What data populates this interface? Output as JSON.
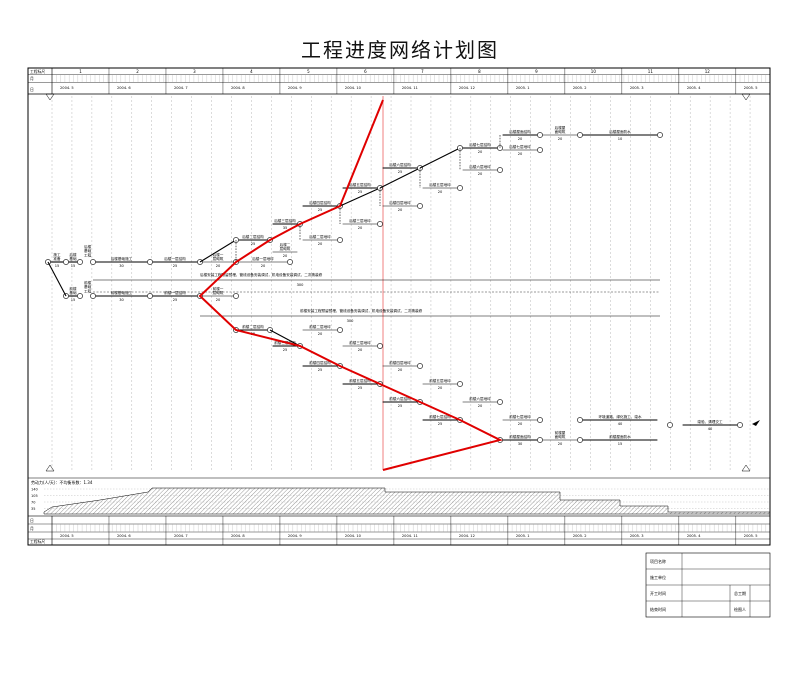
{
  "title": "工程进度网络计划图",
  "header": {
    "row_labels": [
      "工程标尺",
      "月",
      "日"
    ],
    "month_numbers": [
      "1",
      "2",
      "3",
      "4",
      "5",
      "6",
      "7",
      "8",
      "9",
      "10",
      "11",
      "12"
    ],
    "months": [
      "2004. 5",
      "2004. 6",
      "2004. 7",
      "2004. 8",
      "2004. 9",
      "2004. 10",
      "2004. 11",
      "2004. 12",
      "2005. 1",
      "2005. 2",
      "2005. 3",
      "2005. 4",
      "2005. 5"
    ],
    "bottom_row_labels": [
      "日",
      "月",
      "工程标尺"
    ]
  },
  "tasks": [
    {
      "id": "t1",
      "label": "施工\n准备",
      "dur": "15"
    },
    {
      "id": "t2",
      "label": "后楼\n基础",
      "dur": "15"
    },
    {
      "id": "t3",
      "label": "后楼\n基础\n工程",
      "dur": ""
    },
    {
      "id": "t4",
      "label": "后楼基础施工",
      "dur": "30"
    },
    {
      "id": "t5",
      "label": "后楼一层结构",
      "dur": "25"
    },
    {
      "id": "t6",
      "label": "后楼一\n层砌筑",
      "dur": "20"
    },
    {
      "id": "t7",
      "label": "后楼二层结构",
      "dur": "25"
    },
    {
      "id": "t8",
      "label": "后楼二\n层砌筑",
      "dur": "20"
    },
    {
      "id": "t9",
      "label": "后楼三层结构",
      "dur": "35"
    },
    {
      "id": "t10",
      "label": "后楼四层结构",
      "dur": "25"
    },
    {
      "id": "t11",
      "label": "后楼五层结构",
      "dur": "25"
    },
    {
      "id": "t12",
      "label": "后楼六层结构",
      "dur": "25"
    },
    {
      "id": "t13",
      "label": "后楼七层结构",
      "dur": "20"
    },
    {
      "id": "t14",
      "label": "后楼屋面结构",
      "dur": "20"
    },
    {
      "id": "t15",
      "label": "后楼屋\n面砌筑",
      "dur": "20"
    },
    {
      "id": "t16",
      "label": "后楼屋面防水",
      "dur": "10"
    },
    {
      "id": "t17",
      "label": "后楼一层地坪",
      "dur": "20"
    },
    {
      "id": "t18",
      "label": "后楼二层地坪",
      "dur": "20"
    },
    {
      "id": "t19",
      "label": "后楼三层地坪",
      "dur": "20"
    },
    {
      "id": "t20",
      "label": "后楼四层地坪",
      "dur": "20"
    },
    {
      "id": "t21",
      "label": "后楼五层地坪",
      "dur": "20"
    },
    {
      "id": "t22",
      "label": "后楼六层地坪",
      "dur": "20"
    },
    {
      "id": "t23",
      "label": "后楼七层地坪",
      "dur": "20"
    },
    {
      "id": "t24",
      "label": "后楼安装工程预留预埋，管线设备安装调试，机电设备安装调试，二次精装修",
      "dur": "300"
    },
    {
      "id": "t25",
      "label": "前楼\n基础",
      "dur": "15"
    },
    {
      "id": "t26",
      "label": "前楼\n基础\n工程",
      "dur": ""
    },
    {
      "id": "t27",
      "label": "前楼基础施工",
      "dur": "30"
    },
    {
      "id": "t28",
      "label": "前楼一层结构",
      "dur": "25"
    },
    {
      "id": "t29",
      "label": "前楼一\n层砌筑",
      "dur": "20"
    },
    {
      "id": "t30",
      "label": "前楼安装工程预留预埋，管线设备安装调试，机电设备安装调试，二次精装修",
      "dur": "300"
    },
    {
      "id": "t31",
      "label": "前楼二层结构",
      "dur": "25"
    },
    {
      "id": "t32",
      "label": "前楼二层地坪",
      "dur": "20"
    },
    {
      "id": "t33",
      "label": "前楼三层结构",
      "dur": "25"
    },
    {
      "id": "t34",
      "label": "前楼四层结构",
      "dur": "25"
    },
    {
      "id": "t35",
      "label": "前楼五层结构",
      "dur": "25"
    },
    {
      "id": "t36",
      "label": "前楼六层结构",
      "dur": "25"
    },
    {
      "id": "t37",
      "label": "前楼七层结构",
      "dur": "25"
    },
    {
      "id": "t38",
      "label": "前楼屋面结构",
      "dur": "30"
    },
    {
      "id": "t39",
      "label": "前楼屋\n面砌筑",
      "dur": "20"
    },
    {
      "id": "t40",
      "label": "前楼屋面防水",
      "dur": "15"
    },
    {
      "id": "t41",
      "label": "环境道路、绿化施工、竣水",
      "dur": "40"
    },
    {
      "id": "t42",
      "label": "竣验、清理交工",
      "dur": "40"
    },
    {
      "id": "t43",
      "label": "前楼七层地坪",
      "dur": "20"
    },
    {
      "id": "t44",
      "label": "前楼六层地坪",
      "dur": "20"
    },
    {
      "id": "t45",
      "label": "前楼五层地坪",
      "dur": "20"
    },
    {
      "id": "t46",
      "label": "前楼四层地坪",
      "dur": "20"
    },
    {
      "id": "t47",
      "label": "前楼三层地坪",
      "dur": "20"
    }
  ],
  "labor": {
    "caption": "劳动力(人/天)：不均衡系数：1.34",
    "y_ticks": [
      "140",
      "105",
      "70",
      "35"
    ]
  },
  "info_table": {
    "rows": [
      {
        "k": "项目名称",
        "v": "",
        "k2": "",
        "v2": ""
      },
      {
        "k": "施工单位",
        "v": "",
        "k2": "",
        "v2": ""
      },
      {
        "k": "开工时间",
        "v": "",
        "k2": "总工期",
        "v2": ""
      },
      {
        "k": "结束时间",
        "v": "",
        "k2": "绘图人",
        "v2": ""
      }
    ]
  },
  "colors": {
    "critical": "#e00000",
    "line": "#000000",
    "grid": "#9a9a9a",
    "hatch": "#555555"
  }
}
